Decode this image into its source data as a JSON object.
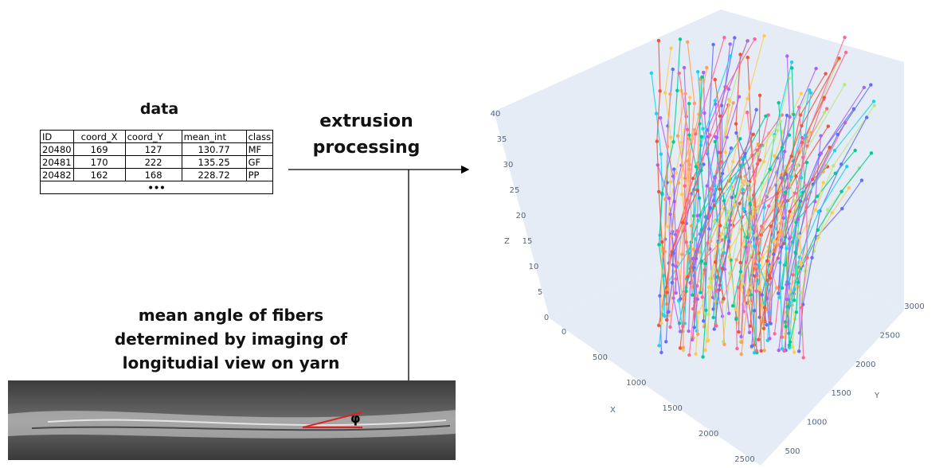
{
  "data_table": {
    "title": "data",
    "header": [
      "ID",
      "coord_X",
      "coord_Y",
      "mean_int",
      "class"
    ],
    "rows": [
      [
        "20480",
        "169",
        "127",
        "130.77",
        "MF"
      ],
      [
        "20481",
        "170",
        "222",
        "135.25",
        "GF"
      ],
      [
        "20482",
        "162",
        "168",
        "228.72",
        "PP"
      ]
    ],
    "ellipsis": "•••"
  },
  "process": {
    "label_line1": "extrusion",
    "label_line2": "processing"
  },
  "yarn": {
    "caption": [
      "mean angle of fibers",
      "determined by imaging of",
      "longitudial view on yarn"
    ],
    "angle_symbol": "φ"
  },
  "plot3d": {
    "x_title": "X",
    "y_title": "Y",
    "z_title": "Z",
    "x_ticks": [
      0,
      500,
      1000,
      1500,
      2000,
      2500
    ],
    "y_ticks": [
      500,
      1000,
      1500,
      2000,
      2500,
      3000
    ],
    "z_ticks": [
      0,
      5,
      10,
      15,
      20,
      25,
      30,
      35,
      40
    ]
  }
}
